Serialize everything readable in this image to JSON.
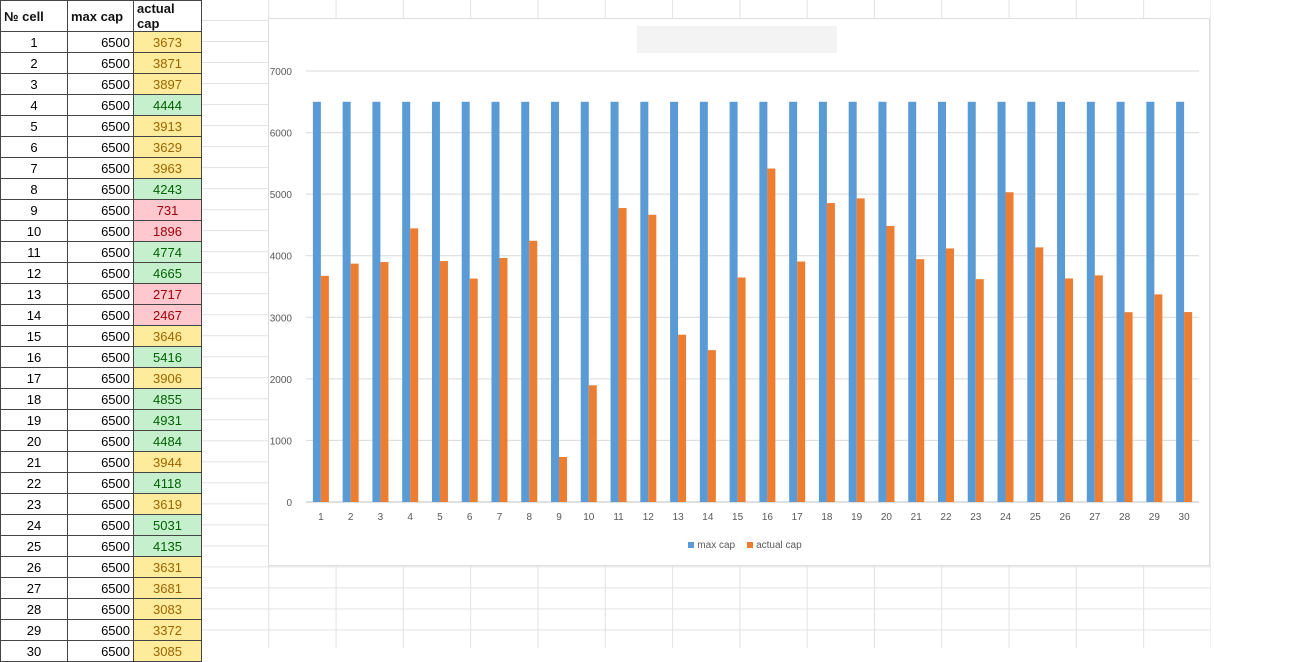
{
  "sheet": {
    "headers": [
      "№ cell",
      "max cap",
      "actual cap"
    ],
    "rows": [
      {
        "cell": "1",
        "max": "6500",
        "actual": "3673",
        "status": "yellow"
      },
      {
        "cell": "2",
        "max": "6500",
        "actual": "3871",
        "status": "yellow"
      },
      {
        "cell": "3",
        "max": "6500",
        "actual": "3897",
        "status": "yellow"
      },
      {
        "cell": "4",
        "max": "6500",
        "actual": "4444",
        "status": "green"
      },
      {
        "cell": "5",
        "max": "6500",
        "actual": "3913",
        "status": "yellow"
      },
      {
        "cell": "6",
        "max": "6500",
        "actual": "3629",
        "status": "yellow"
      },
      {
        "cell": "7",
        "max": "6500",
        "actual": "3963",
        "status": "yellow"
      },
      {
        "cell": "8",
        "max": "6500",
        "actual": "4243",
        "status": "green"
      },
      {
        "cell": "9",
        "max": "6500",
        "actual": "731",
        "status": "red"
      },
      {
        "cell": "10",
        "max": "6500",
        "actual": "1896",
        "status": "red"
      },
      {
        "cell": "11",
        "max": "6500",
        "actual": "4774",
        "status": "green"
      },
      {
        "cell": "12",
        "max": "6500",
        "actual": "4665",
        "status": "green"
      },
      {
        "cell": "13",
        "max": "6500",
        "actual": "2717",
        "status": "red"
      },
      {
        "cell": "14",
        "max": "6500",
        "actual": "2467",
        "status": "red"
      },
      {
        "cell": "15",
        "max": "6500",
        "actual": "3646",
        "status": "yellow"
      },
      {
        "cell": "16",
        "max": "6500",
        "actual": "5416",
        "status": "green"
      },
      {
        "cell": "17",
        "max": "6500",
        "actual": "3906",
        "status": "yellow"
      },
      {
        "cell": "18",
        "max": "6500",
        "actual": "4855",
        "status": "green"
      },
      {
        "cell": "19",
        "max": "6500",
        "actual": "4931",
        "status": "green"
      },
      {
        "cell": "20",
        "max": "6500",
        "actual": "4484",
        "status": "green"
      },
      {
        "cell": "21",
        "max": "6500",
        "actual": "3944",
        "status": "yellow"
      },
      {
        "cell": "22",
        "max": "6500",
        "actual": "4118",
        "status": "green"
      },
      {
        "cell": "23",
        "max": "6500",
        "actual": "3619",
        "status": "yellow"
      },
      {
        "cell": "24",
        "max": "6500",
        "actual": "5031",
        "status": "green"
      },
      {
        "cell": "25",
        "max": "6500",
        "actual": "4135",
        "status": "green"
      },
      {
        "cell": "26",
        "max": "6500",
        "actual": "3631",
        "status": "yellow"
      },
      {
        "cell": "27",
        "max": "6500",
        "actual": "3681",
        "status": "yellow"
      },
      {
        "cell": "28",
        "max": "6500",
        "actual": "3083",
        "status": "yellow"
      },
      {
        "cell": "29",
        "max": "6500",
        "actual": "3372",
        "status": "yellow"
      },
      {
        "cell": "30",
        "max": "6500",
        "actual": "3085",
        "status": "yellow"
      }
    ],
    "status_colors": {
      "yellow": {
        "fill": "#FFEB9C",
        "text": "#9C6500"
      },
      "green": {
        "fill": "#C6EFCE",
        "text": "#006100"
      },
      "red": {
        "fill": "#FFC7CE",
        "text": "#9C0006"
      }
    }
  },
  "chart_data": {
    "type": "bar",
    "title": "",
    "xlabel": "",
    "ylabel": "",
    "categories": [
      "1",
      "2",
      "3",
      "4",
      "5",
      "6",
      "7",
      "8",
      "9",
      "10",
      "11",
      "12",
      "13",
      "14",
      "15",
      "16",
      "17",
      "18",
      "19",
      "20",
      "21",
      "22",
      "23",
      "24",
      "25",
      "26",
      "27",
      "28",
      "29",
      "30"
    ],
    "series": [
      {
        "name": "max cap",
        "color": "#5B9BD5",
        "values": [
          6500,
          6500,
          6500,
          6500,
          6500,
          6500,
          6500,
          6500,
          6500,
          6500,
          6500,
          6500,
          6500,
          6500,
          6500,
          6500,
          6500,
          6500,
          6500,
          6500,
          6500,
          6500,
          6500,
          6500,
          6500,
          6500,
          6500,
          6500,
          6500,
          6500
        ]
      },
      {
        "name": "actual cap",
        "color": "#ED7D31",
        "values": [
          3673,
          3871,
          3897,
          4444,
          3913,
          3629,
          3963,
          4243,
          731,
          1896,
          4774,
          4665,
          2717,
          2467,
          3646,
          5416,
          3906,
          4855,
          4931,
          4484,
          3944,
          4118,
          3619,
          5031,
          4135,
          3631,
          3681,
          3083,
          3372,
          3085
        ]
      }
    ],
    "ylim": [
      0,
      7000
    ],
    "yticks": [
      "0",
      "1000",
      "2000",
      "3000",
      "4000",
      "5000",
      "6000",
      "7000"
    ],
    "grid": true,
    "legend": "bottom"
  }
}
